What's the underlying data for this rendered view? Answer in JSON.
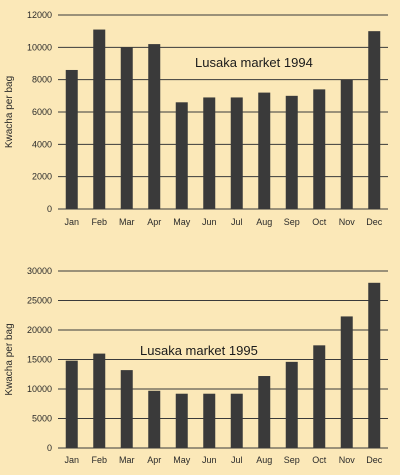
{
  "chart_data": [
    {
      "type": "bar",
      "title": "Lusaka market 1994",
      "xlabel": "",
      "ylabel": "Kwacha per bag",
      "categories": [
        "Jan",
        "Feb",
        "Mar",
        "Apr",
        "May",
        "Jun",
        "Jul",
        "Aug",
        "Sep",
        "Oct",
        "Nov",
        "Dec"
      ],
      "values": [
        8600,
        11100,
        10000,
        10200,
        6600,
        6900,
        6900,
        7200,
        7000,
        7400,
        8000,
        11000
      ],
      "ylim": [
        0,
        12000
      ],
      "yticks": [
        0,
        2000,
        4000,
        6000,
        8000,
        10000,
        12000
      ],
      "grid": true,
      "color": "#3a3a3a"
    },
    {
      "type": "bar",
      "title": "Lusaka market 1995",
      "xlabel": "",
      "ylabel": "Kwacha per bag",
      "categories": [
        "Jan",
        "Feb",
        "Mar",
        "Apr",
        "May",
        "Jun",
        "Jul",
        "Aug",
        "Sep",
        "Oct",
        "Nov",
        "Dec"
      ],
      "values": [
        14800,
        16000,
        13200,
        9700,
        9200,
        9200,
        9200,
        12200,
        14600,
        17400,
        22300,
        28000
      ],
      "ylim": [
        0,
        30000
      ],
      "yticks": [
        0,
        5000,
        10000,
        15000,
        20000,
        25000,
        30000
      ],
      "grid": true,
      "color": "#3a3a3a"
    }
  ],
  "colors": {
    "background": "#fbe8b8",
    "bar": "#3a3a3a",
    "text": "#2a2a2a"
  }
}
